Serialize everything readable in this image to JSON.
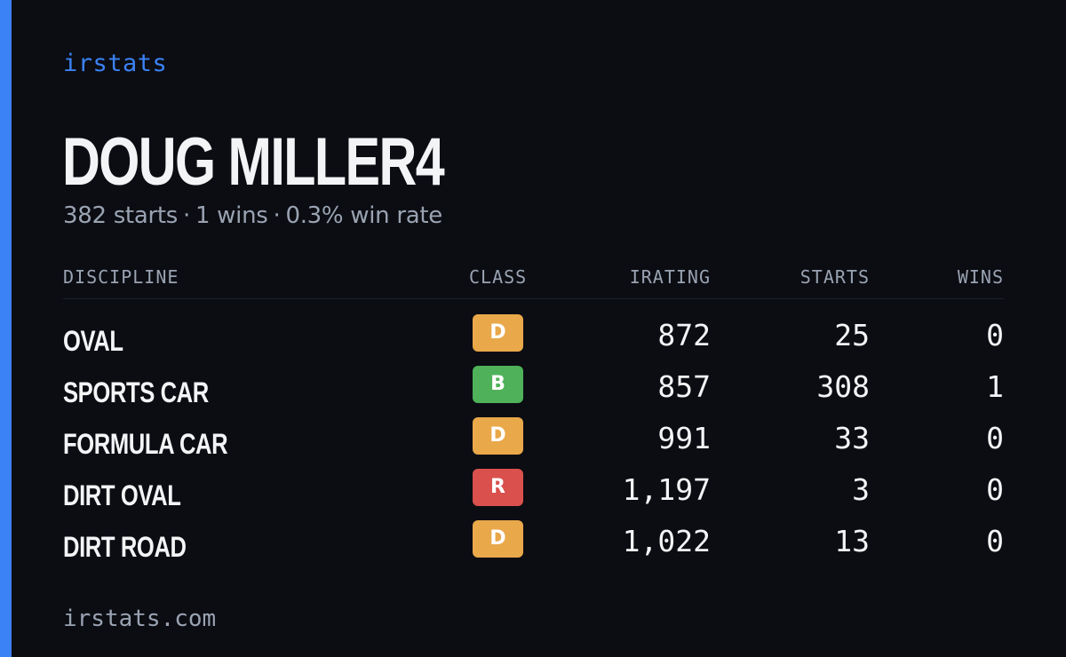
{
  "brand": "irstats",
  "driver": {
    "name": "DOUG MILLER4"
  },
  "summary": {
    "starts": "382 starts",
    "wins": "1 wins",
    "win_rate": "0.3% win rate",
    "separator": "·"
  },
  "table": {
    "headers": {
      "discipline": "DISCIPLINE",
      "class": "CLASS",
      "irating": "IRATING",
      "starts": "STARTS",
      "wins": "WINS"
    },
    "rows": [
      {
        "discipline": "OVAL",
        "class": "D",
        "class_color": "#e9a84a",
        "irating": "872",
        "starts": "25",
        "wins": "0"
      },
      {
        "discipline": "SPORTS CAR",
        "class": "B",
        "class_color": "#4fb25a",
        "irating": "857",
        "starts": "308",
        "wins": "1"
      },
      {
        "discipline": "FORMULA CAR",
        "class": "D",
        "class_color": "#e9a84a",
        "irating": "991",
        "starts": "33",
        "wins": "0"
      },
      {
        "discipline": "DIRT OVAL",
        "class": "R",
        "class_color": "#d9504d",
        "irating": "1,197",
        "starts": "3",
        "wins": "0"
      },
      {
        "discipline": "DIRT ROAD",
        "class": "D",
        "class_color": "#e9a84a",
        "irating": "1,022",
        "starts": "13",
        "wins": "0"
      }
    ]
  },
  "footer": "irstats.com",
  "colors": {
    "accent": "#3b82f6",
    "background": "#0b0d13",
    "muted": "#9aa3b2"
  }
}
